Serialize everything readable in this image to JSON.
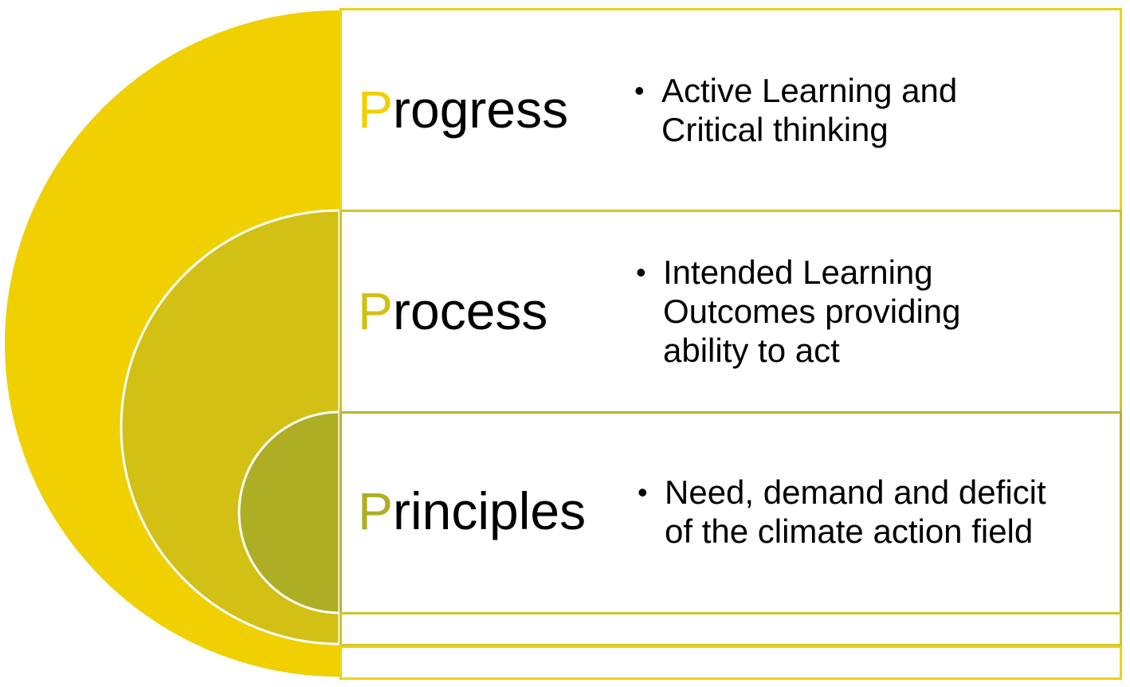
{
  "colors": {
    "outer_arc": "#f0d000",
    "middle_arc": "#d2c015",
    "inner_arc": "#aeae25",
    "row_border_progress": "#ecd21a",
    "row_border_process": "#cfc52a",
    "row_border_principles": "#b9b23a",
    "text": "#000000",
    "background": "#ffffff"
  },
  "rows": [
    {
      "initial": "P",
      "rest": "rogress",
      "initial_color": "#f0d000",
      "bullet_lines": [
        "Active Learning and",
        "Critical thinking"
      ]
    },
    {
      "initial": "P",
      "rest": "rocess",
      "initial_color": "#d2c015",
      "bullet_lines": [
        "Intended Learning",
        "Outcomes providing",
        "ability to act"
      ]
    },
    {
      "initial": "P",
      "rest": "rinciples",
      "initial_color": "#aeae25",
      "bullet_lines": [
        "Need, demand and deficit",
        "of the climate action field"
      ]
    }
  ]
}
